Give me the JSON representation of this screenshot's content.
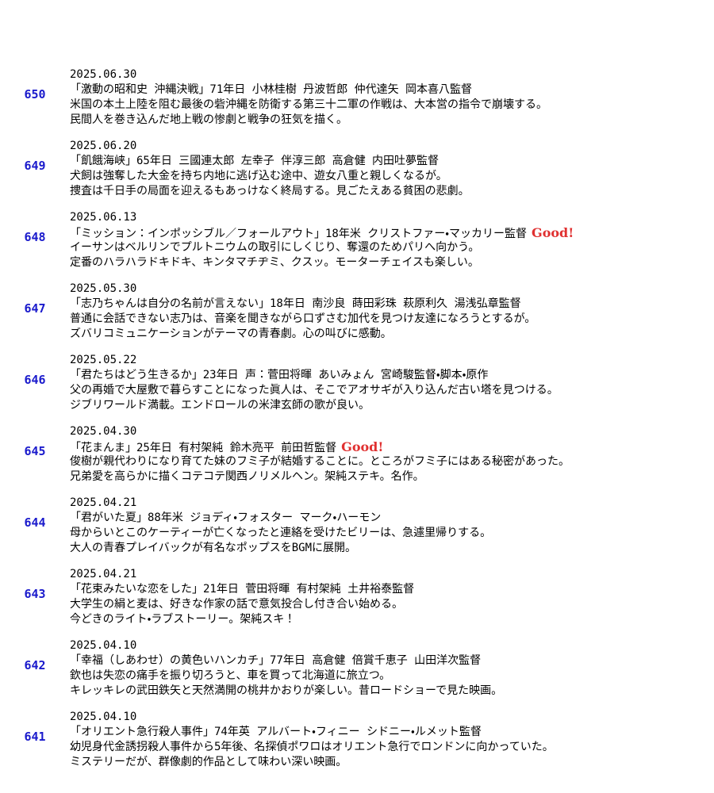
{
  "entries": [
    {
      "number": "650",
      "date": "2025.06.30",
      "title": "「激動の昭和史 沖縄決戦」71年日 小林桂樹 丹波哲郎 仲代達矢 岡本喜八監督",
      "lines": [
        "米国の本土上陸を阻む最後の砦沖縄を防衛する第三十二軍の作戦は、大本営の指令で崩壊する。",
        "民間人を巻き込んだ地上戦の惨劇と戦争の狂気を描く。"
      ]
    },
    {
      "number": "649",
      "date": "2025.06.20",
      "title": "「飢餓海峡」65年日 三國連太郎 左幸子 伴淳三郎 高倉健 内田吐夢監督",
      "lines": [
        "犬飼は強奪した大金を持ち内地に逃げ込む途中、遊女八重と親しくなるが。",
        "捜査は千日手の局面を迎えるもあっけなく終局する。見ごたえある貧困の悲劇。"
      ]
    },
    {
      "number": "648",
      "date": "2025.06.13",
      "title": "「ミッション：インポッシブル／フォールアウト」18年米 クリストファー・マッカリー監督",
      "good": "Good!",
      "lines": [
        "イーサンはベルリンでプルトニウムの取引にしくじり、奪還のためパリへ向かう。",
        "定番のハラハラドキドキ、キンタマチヂミ、クスッ。モーターチェイスも楽しい。"
      ]
    },
    {
      "number": "647",
      "date": "2025.05.30",
      "title": "「志乃ちゃんは自分の名前が言えない」18年日 南沙良 蒔田彩珠 萩原利久 湯浅弘章監督",
      "lines": [
        "普通に会話できない志乃は、音楽を聞きながら口ずさむ加代を見つけ友達になろうとするが。",
        "ズバリコミュニケーションがテーマの青春劇。心の叫びに感動。"
      ]
    },
    {
      "number": "646",
      "date": "2025.05.22",
      "title": "「君たちはどう生きるか」23年日 声：菅田将暉 あいみょん 宮崎駿監督・脚本・原作",
      "lines": [
        "父の再婚で大屋敷で暮らすことになった眞人は、そこでアオサギが入り込んだ古い塔を見つける。",
        "ジブリワールド満載。エンドロールの米津玄師の歌が良い。"
      ]
    },
    {
      "number": "645",
      "date": "2025.04.30",
      "title": "「花まんま」25年日 有村架純 鈴木亮平 前田哲監督",
      "good": "Good!",
      "lines": [
        "俊樹が親代わりになり育てた妹のフミ子が結婚することに。ところがフミ子にはある秘密があった。",
        "兄弟愛を高らかに描くコテコテ関西ノリメルヘン。架純ステキ。名作。"
      ]
    },
    {
      "number": "644",
      "date": "2025.04.21",
      "title": "「君がいた夏」88年米 ジョディ・フォスター マーク・ハーモン",
      "lines": [
        "母からいとこのケーティーが亡くなったと連絡を受けたビリーは、急遽里帰りする。",
        "大人の青春プレイバックが有名なポップスをBGMに展開。"
      ]
    },
    {
      "number": "643",
      "date": "2025.04.21",
      "title": "「花束みたいな恋をした」21年日 菅田将暉 有村架純 土井裕泰監督",
      "lines": [
        "大学生の絹と麦は、好きな作家の話で意気投合し付き合い始める。",
        "今どきのライト・ラブストーリー。架純スキ！"
      ]
    },
    {
      "number": "642",
      "date": "2025.04.10",
      "title": "「幸福（しあわせ）の黄色いハンカチ」77年日 高倉健 倍賞千恵子 山田洋次監督",
      "lines": [
        "欽也は失恋の痛手を振り切ろうと、車を買って北海道に旅立つ。",
        "キレッキレの武田鉄矢と天然満開の桃井かおりが楽しい。昔ロードショーで見た映画。"
      ]
    },
    {
      "number": "641",
      "date": "2025.04.10",
      "title": "「オリエント急行殺人事件」74年英 アルバート・フィニー シドニー・ルメット監督",
      "lines": [
        "幼児身代金誘拐殺人事件から5年後、名探偵ポワロはオリエント急行でロンドンに向かっていた。",
        "ミステリーだが、群像劇的作品として味わい深い映画。"
      ]
    }
  ]
}
